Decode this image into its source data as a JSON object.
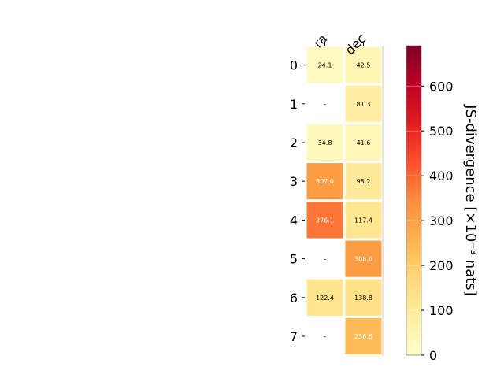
{
  "chart_data": {
    "type": "heatmap",
    "x_categories": [
      "ra",
      "dec"
    ],
    "y_categories": [
      "0",
      "1",
      "2",
      "3",
      "4",
      "5",
      "6",
      "7"
    ],
    "cells": [
      [
        24.1,
        42.5
      ],
      [
        null,
        81.3
      ],
      [
        34.8,
        41.6
      ],
      [
        307.0,
        98.2
      ],
      [
        376.1,
        117.4
      ],
      [
        null,
        308.6
      ],
      [
        122.4,
        138.8
      ],
      [
        null,
        236.6
      ]
    ],
    "cell_labels": [
      [
        "24.1",
        "42.5"
      ],
      [
        "–",
        "81.3"
      ],
      [
        "34.8",
        "41.6"
      ],
      [
        "307.0",
        "98.2"
      ],
      [
        "376.1",
        "117.4"
      ],
      [
        "–",
        "308.6"
      ],
      [
        "122.4",
        "138.8"
      ],
      [
        "–",
        "236.6"
      ]
    ],
    "colorbar": {
      "label": "JS-divergence [×10⁻³ nats]",
      "range": [
        0,
        690
      ],
      "ticks": [
        0,
        100,
        200,
        300,
        400,
        500,
        600
      ],
      "tick_labels": [
        "0",
        "100",
        "200",
        "300",
        "400",
        "500",
        "600"
      ],
      "colormap": "YlOrRd"
    }
  }
}
